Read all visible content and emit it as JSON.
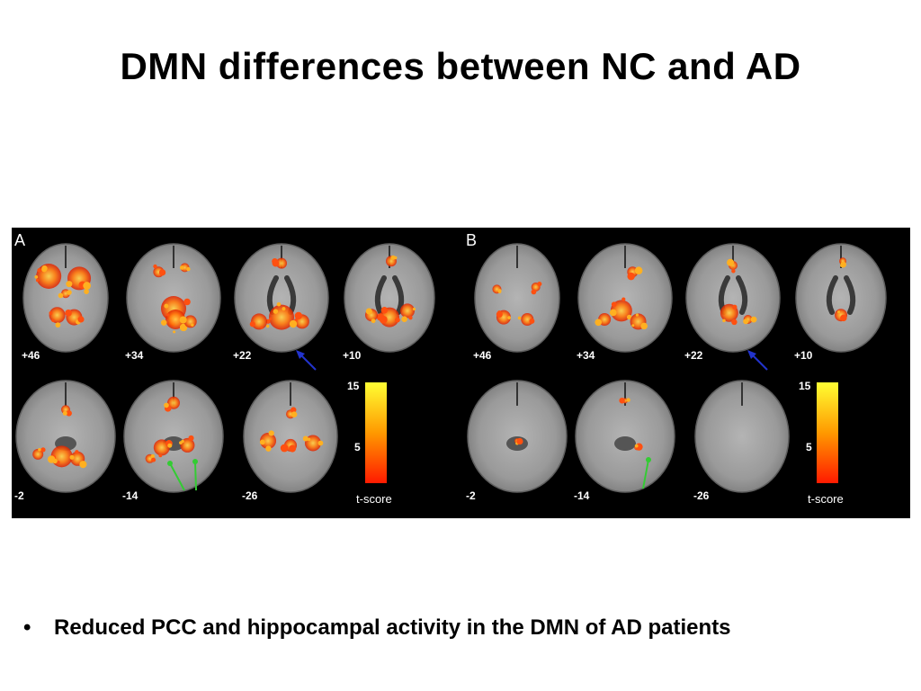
{
  "slide": {
    "title": "DMN differences between NC and AD",
    "bullet": "Reduced PCC and hippocampal activity in the DMN of AD patients",
    "bullet_marker": "•"
  },
  "figure": {
    "panels": [
      {
        "label": "A",
        "colorbar": {
          "max": "15",
          "mid": "5",
          "label": "t-score"
        },
        "slices": [
          "+46",
          "+34",
          "+22",
          "+10",
          "-2",
          "-14",
          "-26"
        ],
        "activation": "high"
      },
      {
        "label": "B",
        "colorbar": {
          "max": "15",
          "mid": "5",
          "label": "t-score"
        },
        "slices": [
          "+46",
          "+34",
          "+22",
          "+10",
          "-2",
          "-14",
          "-26"
        ],
        "activation": "low"
      }
    ],
    "colors": {
      "background": "#000000",
      "brain": "#9a9a9a",
      "activation_hot": "#ff3300",
      "activation_warm": "#ffcc00",
      "arrow_blue": "#2233cc",
      "arrow_green": "#33cc33"
    }
  }
}
